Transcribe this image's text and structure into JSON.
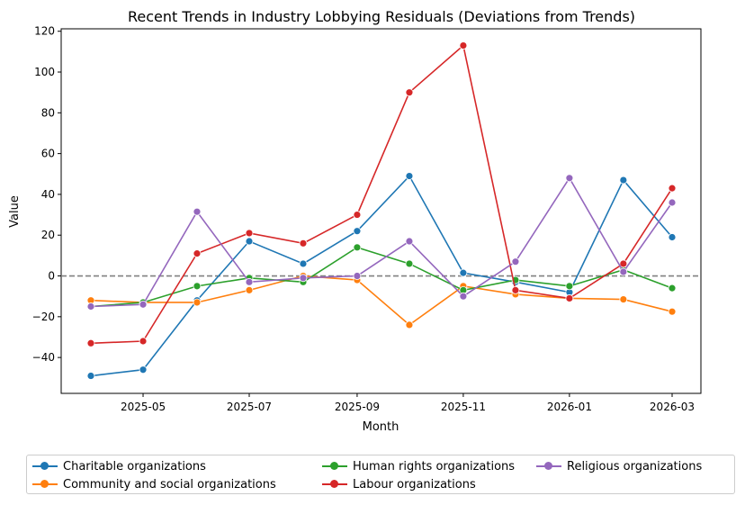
{
  "chart_data": {
    "type": "line",
    "title": "Recent Trends in Industry Lobbying Residuals (Deviations from Trends)",
    "xlabel": "Month",
    "ylabel": "Value",
    "x": [
      "2025-04-01",
      "2025-05-01",
      "2025-06-01",
      "2025-07-01",
      "2025-08-01",
      "2025-09-01",
      "2025-10-01",
      "2025-11-01",
      "2025-12-01",
      "2026-01-01",
      "2026-02-01",
      "2026-03-01"
    ],
    "xticks": [
      "2025-05",
      "2025-07",
      "2025-09",
      "2025-11",
      "2026-01",
      "2026-03"
    ],
    "yticks": [
      -40,
      -20,
      0,
      20,
      40,
      60,
      80,
      100,
      120
    ],
    "ylim": [
      -57.6,
      121.2
    ],
    "reference_line": {
      "y": 0,
      "style": "dashed",
      "color": "#808080"
    },
    "grid": false,
    "legend_placement": "bottom",
    "series": [
      {
        "name": "Charitable organizations",
        "color": "#1f77b4",
        "values": [
          -49,
          -46,
          -12,
          17,
          6,
          22,
          49,
          1.5,
          -3,
          -8,
          47,
          19
        ]
      },
      {
        "name": "Community and social organizations",
        "color": "#ff7f0e",
        "values": [
          -12,
          -13,
          -13,
          -7,
          0,
          -2,
          -24,
          -5,
          -9,
          -11,
          -11.5,
          -17.5
        ]
      },
      {
        "name": "Human rights organizations",
        "color": "#2ca02c",
        "values": [
          -15,
          -13,
          -5,
          -1,
          -3,
          14,
          6,
          -7,
          -2,
          -5,
          3,
          -6
        ]
      },
      {
        "name": "Labour organizations",
        "color": "#d62728",
        "values": [
          -33,
          -32,
          11,
          21,
          16,
          30,
          90,
          113,
          -7,
          -11,
          6,
          43
        ]
      },
      {
        "name": "Religious organizations",
        "color": "#9467bd",
        "values": [
          -15,
          -14,
          31.5,
          -3,
          -1,
          0,
          17,
          -10,
          7,
          48,
          2,
          36
        ]
      }
    ]
  }
}
